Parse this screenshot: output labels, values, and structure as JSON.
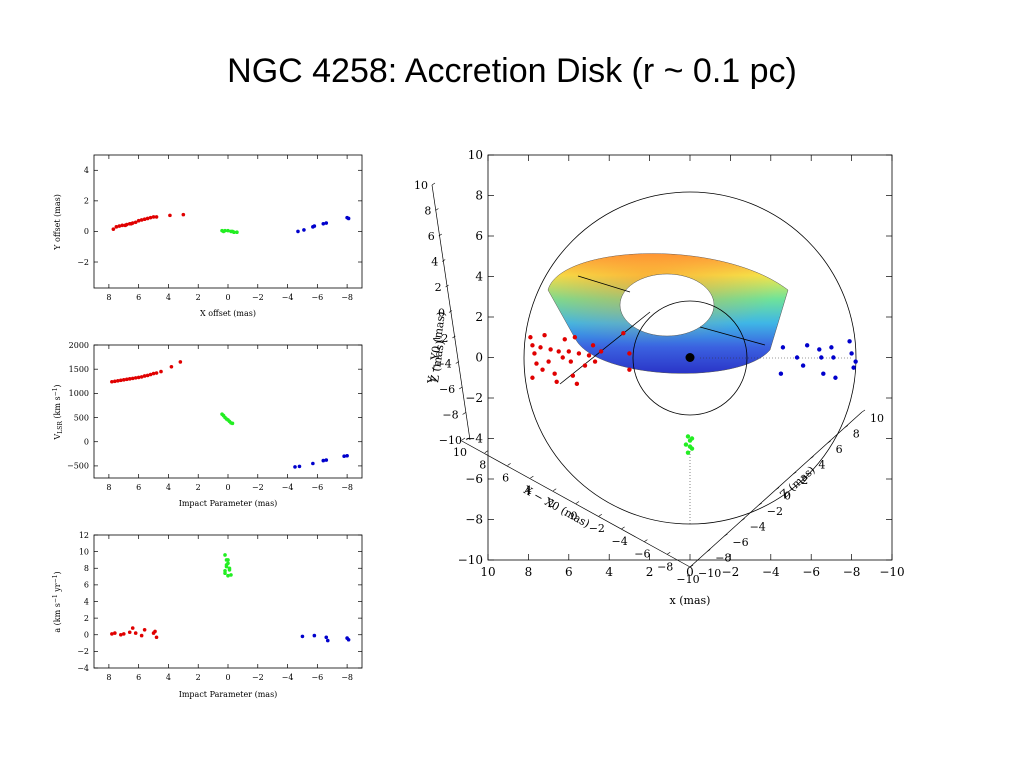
{
  "slide": {
    "title": "NGC 4258: Accretion Disk (r ~ 0.1 pc)"
  },
  "colors": {
    "red": "#e00000",
    "green": "#22ee22",
    "blue": "#0000cc",
    "frame": "#000000"
  },
  "chart_data": [
    {
      "type": "scatter",
      "panel": "positions",
      "xlabel": "X offset (mas)",
      "ylabel": "Y offset (mas)",
      "xlim": [
        9,
        -9
      ],
      "ylim": [
        -3.7,
        5
      ],
      "x_ticks": [
        "8",
        "6",
        "4",
        "2",
        "0",
        "−2",
        "−4",
        "−6",
        "−8"
      ],
      "y_ticks": [
        "4",
        "2",
        "0",
        "−2"
      ],
      "series": [
        {
          "color": "red",
          "points": [
            [
              7.7,
              0.15
            ],
            [
              7.5,
              0.3
            ],
            [
              7.3,
              0.35
            ],
            [
              7.1,
              0.4
            ],
            [
              6.8,
              0.45
            ],
            [
              6.6,
              0.5
            ],
            [
              6.4,
              0.55
            ],
            [
              6.2,
              0.6
            ],
            [
              6.0,
              0.7
            ],
            [
              5.8,
              0.75
            ],
            [
              5.6,
              0.8
            ],
            [
              5.4,
              0.85
            ],
            [
              5.2,
              0.9
            ],
            [
              5.0,
              0.95
            ],
            [
              4.8,
              0.95
            ],
            [
              3.9,
              1.05
            ],
            [
              3.0,
              1.1
            ],
            [
              6.5,
              0.5
            ],
            [
              6.9,
              0.4
            ]
          ]
        },
        {
          "color": "green",
          "points": [
            [
              0.4,
              0.05
            ],
            [
              0.2,
              0.05
            ],
            [
              0.0,
              0.05
            ],
            [
              -0.2,
              0.0
            ],
            [
              -0.4,
              -0.05
            ],
            [
              -0.6,
              -0.05
            ],
            [
              0.3,
              0.0
            ],
            [
              -0.3,
              0.0
            ]
          ]
        },
        {
          "color": "blue",
          "points": [
            [
              -4.7,
              0.0
            ],
            [
              -5.1,
              0.1
            ],
            [
              -5.7,
              0.3
            ],
            [
              -5.8,
              0.35
            ],
            [
              -6.4,
              0.5
            ],
            [
              -6.6,
              0.55
            ],
            [
              -8.0,
              0.9
            ],
            [
              -8.1,
              0.85
            ]
          ]
        }
      ]
    },
    {
      "type": "scatter",
      "panel": "velocities",
      "xlabel": "Impact Parameter (mas)",
      "ylabel": "V_LSR (km s^-1)",
      "xlim": [
        9,
        -9
      ],
      "ylim": [
        -750,
        2000
      ],
      "x_ticks": [
        "8",
        "6",
        "4",
        "2",
        "0",
        "−2",
        "−4",
        "−6",
        "−8"
      ],
      "y_ticks": [
        "2000",
        "1500",
        "1000",
        "500",
        "0",
        "−500"
      ],
      "series": [
        {
          "color": "red",
          "points": [
            [
              7.8,
              1240
            ],
            [
              7.6,
              1250
            ],
            [
              7.4,
              1260
            ],
            [
              7.2,
              1270
            ],
            [
              7.0,
              1280
            ],
            [
              6.8,
              1290
            ],
            [
              6.6,
              1300
            ],
            [
              6.4,
              1310
            ],
            [
              6.2,
              1320
            ],
            [
              6.0,
              1330
            ],
            [
              5.8,
              1340
            ],
            [
              5.6,
              1360
            ],
            [
              5.4,
              1370
            ],
            [
              5.2,
              1390
            ],
            [
              5.0,
              1410
            ],
            [
              4.8,
              1420
            ],
            [
              4.5,
              1450
            ],
            [
              3.8,
              1550
            ],
            [
              3.2,
              1650
            ]
          ]
        },
        {
          "color": "green",
          "points": [
            [
              0.4,
              570
            ],
            [
              0.3,
              540
            ],
            [
              0.2,
              500
            ],
            [
              0.1,
              470
            ],
            [
              0.0,
              450
            ],
            [
              -0.1,
              420
            ],
            [
              -0.2,
              390
            ],
            [
              -0.3,
              380
            ]
          ]
        },
        {
          "color": "blue",
          "points": [
            [
              -4.5,
              -520
            ],
            [
              -4.8,
              -510
            ],
            [
              -5.7,
              -450
            ],
            [
              -6.4,
              -390
            ],
            [
              -6.6,
              -380
            ],
            [
              -7.8,
              -300
            ],
            [
              -8.0,
              -290
            ]
          ]
        }
      ]
    },
    {
      "type": "scatter",
      "panel": "accelerations",
      "xlabel": "Impact Parameter (mas)",
      "ylabel": "a (km s^-1 yr^-1)",
      "xlim": [
        9,
        -9
      ],
      "ylim": [
        -4,
        12
      ],
      "x_ticks": [
        "8",
        "6",
        "4",
        "2",
        "0",
        "−2",
        "−4",
        "−6",
        "−8"
      ],
      "y_ticks": [
        "12",
        "10",
        "8",
        "6",
        "4",
        "2",
        "0",
        "−2",
        "−4"
      ],
      "series": [
        {
          "color": "red",
          "points": [
            [
              7.8,
              0.1
            ],
            [
              7.6,
              0.2
            ],
            [
              7.2,
              0.0
            ],
            [
              7.0,
              0.1
            ],
            [
              6.6,
              0.3
            ],
            [
              6.4,
              0.8
            ],
            [
              6.2,
              0.2
            ],
            [
              5.8,
              -0.1
            ],
            [
              5.6,
              0.6
            ],
            [
              5.0,
              0.2
            ],
            [
              4.8,
              -0.3
            ],
            [
              4.9,
              0.4
            ]
          ]
        },
        {
          "color": "green",
          "points": [
            [
              0.2,
              9.6
            ],
            [
              0.1,
              9.0
            ],
            [
              0.0,
              8.6
            ],
            [
              0.1,
              8.2
            ],
            [
              -0.1,
              7.8
            ],
            [
              0.2,
              7.4
            ],
            [
              0.0,
              7.1
            ],
            [
              -0.1,
              8.0
            ],
            [
              0.1,
              8.4
            ],
            [
              0.2,
              7.7
            ],
            [
              -0.2,
              7.2
            ],
            [
              0.0,
              9.0
            ]
          ]
        },
        {
          "color": "blue",
          "points": [
            [
              -5.0,
              -0.2
            ],
            [
              -5.8,
              -0.1
            ],
            [
              -6.6,
              -0.3
            ],
            [
              -6.7,
              -0.7
            ],
            [
              -8.0,
              -0.4
            ],
            [
              -8.1,
              -0.6
            ]
          ]
        }
      ]
    },
    {
      "type": "scatter",
      "panel": "disk-3d",
      "xlabel": "x (mas)",
      "ylabel": "",
      "xlim": [
        10,
        -10
      ],
      "ylim": [
        -10,
        10
      ],
      "x_ticks": [
        "10",
        "8",
        "6",
        "4",
        "2",
        "0",
        "−2",
        "−4",
        "−6",
        "−8",
        "−10"
      ],
      "y_ticks": [
        "10",
        "8",
        "6",
        "4",
        "2",
        "0",
        "−2",
        "−4",
        "−6",
        "−8",
        "−10"
      ],
      "axis_labels_3d": [
        "Y − Y0 (mas)",
        "Z (mas)",
        "X − X0 (mas)",
        "Z (mas)"
      ],
      "axis_ticks_3d": {
        "upper_left": [
          "10",
          "8",
          "6",
          "4",
          "2",
          "0",
          "−2",
          "−4",
          "−6",
          "−8",
          "−10"
        ],
        "lower_left": [
          "10",
          "8",
          "6",
          "4",
          "2",
          "0",
          "−2",
          "−4",
          "−6",
          "−8",
          "−10"
        ],
        "lower_right": [
          "10",
          "8",
          "6",
          "4",
          "2",
          "0",
          "−2",
          "−4",
          "−6",
          "−8",
          "−10"
        ]
      },
      "series": [
        {
          "color": "red",
          "points": [
            [
              7.9,
              1.0
            ],
            [
              7.8,
              0.6
            ],
            [
              7.7,
              0.2
            ],
            [
              7.6,
              -0.3
            ],
            [
              7.8,
              -1.0
            ],
            [
              7.4,
              0.5
            ],
            [
              7.3,
              -0.6
            ],
            [
              7.0,
              -0.2
            ],
            [
              6.9,
              0.4
            ],
            [
              6.7,
              -0.8
            ],
            [
              6.6,
              -1.2
            ],
            [
              6.5,
              0.3
            ],
            [
              6.2,
              0.9
            ],
            [
              6.0,
              0.3
            ],
            [
              5.9,
              -0.2
            ],
            [
              5.8,
              -0.9
            ],
            [
              5.6,
              -1.3
            ],
            [
              5.5,
              0.2
            ],
            [
              5.2,
              -0.4
            ],
            [
              5.0,
              0.1
            ],
            [
              4.8,
              0.6
            ],
            [
              4.7,
              -0.2
            ],
            [
              4.4,
              0.3
            ],
            [
              3.3,
              1.2
            ],
            [
              3.0,
              0.2
            ],
            [
              3.0,
              -0.6
            ],
            [
              6.3,
              0.0
            ],
            [
              7.2,
              1.1
            ],
            [
              5.7,
              1.0
            ]
          ]
        },
        {
          "color": "green",
          "points": [
            [
              0.1,
              -3.9
            ],
            [
              0.0,
              -4.1
            ],
            [
              0.2,
              -4.3
            ],
            [
              -0.1,
              -4.5
            ],
            [
              0.1,
              -4.7
            ],
            [
              0.0,
              -4.4
            ],
            [
              -0.1,
              -4.0
            ]
          ]
        },
        {
          "color": "blue",
          "points": [
            [
              -4.6,
              0.5
            ],
            [
              -4.5,
              -0.8
            ],
            [
              -5.3,
              0.0
            ],
            [
              -5.6,
              -0.4
            ],
            [
              -5.8,
              0.6
            ],
            [
              -6.4,
              0.4
            ],
            [
              -6.5,
              0.0
            ],
            [
              -6.6,
              -0.8
            ],
            [
              -7.0,
              0.5
            ],
            [
              -7.1,
              0.0
            ],
            [
              -7.2,
              -1.0
            ],
            [
              -7.9,
              0.8
            ],
            [
              -8.0,
              0.2
            ],
            [
              -8.1,
              -0.5
            ],
            [
              -8.2,
              -0.2
            ]
          ]
        },
        {
          "color": "black",
          "points": [
            [
              0.0,
              0.0
            ]
          ]
        }
      ]
    }
  ]
}
